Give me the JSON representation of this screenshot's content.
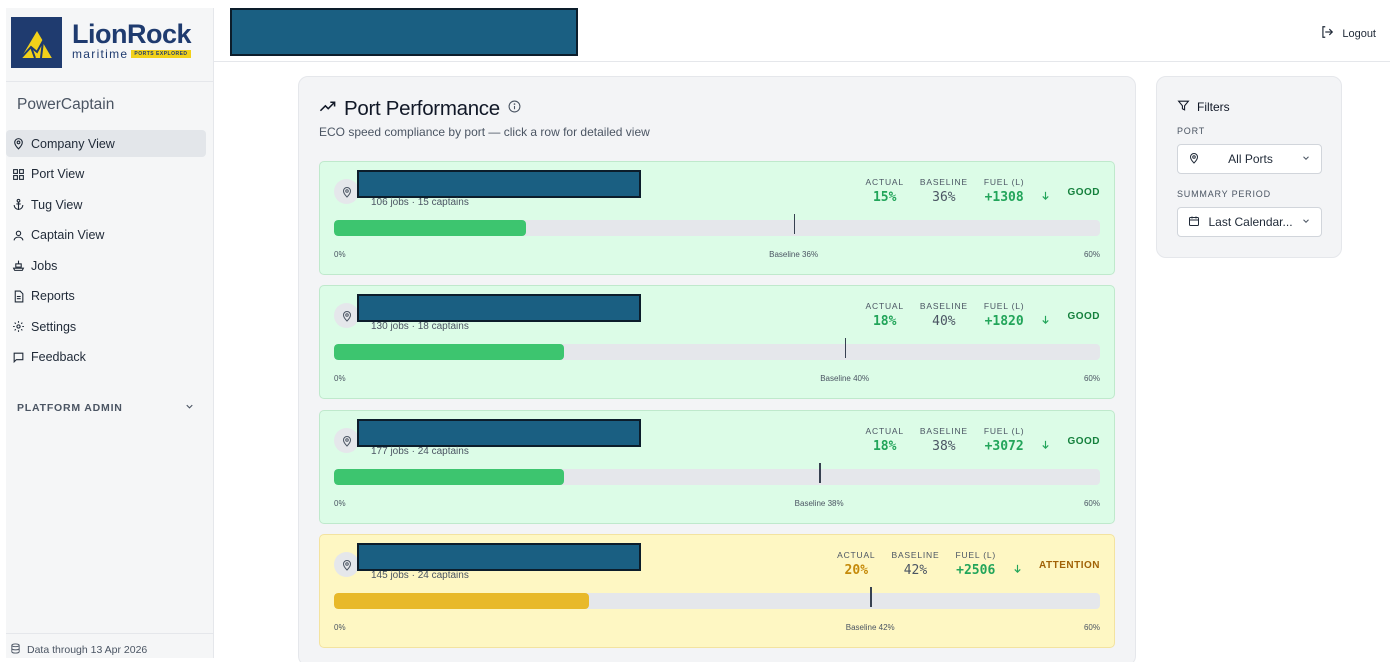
{
  "brand": {
    "name": "LionRock",
    "sub": "maritime",
    "tagline": "PORTS EXPLORED"
  },
  "app": {
    "name": "PowerCaptain",
    "data_through": "Data through 13 Apr 2026"
  },
  "sidebar": {
    "items": [
      {
        "label": "Company View",
        "icon": "map-pin-icon",
        "active": true
      },
      {
        "label": "Port View",
        "icon": "grid-icon",
        "active": false
      },
      {
        "label": "Tug View",
        "icon": "anchor-icon",
        "active": false
      },
      {
        "label": "Captain View",
        "icon": "user-icon",
        "active": false
      },
      {
        "label": "Jobs",
        "icon": "ship-icon",
        "active": false
      },
      {
        "label": "Reports",
        "icon": "document-icon",
        "active": false
      },
      {
        "label": "Settings",
        "icon": "gear-icon",
        "active": false
      },
      {
        "label": "Feedback",
        "icon": "message-icon",
        "active": false
      }
    ],
    "platform_admin": "PLATFORM ADMIN"
  },
  "header": {
    "logout_label": "Logout"
  },
  "main": {
    "title": "Port Performance",
    "subtitle": "ECO speed compliance by port — click a row for detailed view",
    "labels": {
      "actual": "ACTUAL",
      "baseline": "BASELINE",
      "fuel": "FUEL (L)"
    },
    "ports": [
      {
        "meta": "106 jobs · 15 captains",
        "actual": "15%",
        "baseline": "36%",
        "fuel": "+1308",
        "status": "GOOD",
        "actual_pct": 15,
        "baseline_pct": 36,
        "axis_min": "0%",
        "axis_max": "60%",
        "baseline_label": "Baseline 36%"
      },
      {
        "meta": "130 jobs · 18 captains",
        "actual": "18%",
        "baseline": "40%",
        "fuel": "+1820",
        "status": "GOOD",
        "actual_pct": 18,
        "baseline_pct": 40,
        "axis_min": "0%",
        "axis_max": "60%",
        "baseline_label": "Baseline 40%"
      },
      {
        "meta": "177 jobs · 24 captains",
        "actual": "18%",
        "baseline": "38%",
        "fuel": "+3072",
        "status": "GOOD",
        "actual_pct": 18,
        "baseline_pct": 38,
        "axis_min": "0%",
        "axis_max": "60%",
        "baseline_label": "Baseline 38%"
      },
      {
        "meta": "145 jobs · 24 captains",
        "actual": "20%",
        "baseline": "42%",
        "fuel": "+2506",
        "status": "ATTENTION",
        "actual_pct": 20,
        "baseline_pct": 42,
        "axis_min": "0%",
        "axis_max": "60%",
        "baseline_label": "Baseline 42%"
      }
    ],
    "scale_max_pct": 60
  },
  "filters": {
    "title": "Filters",
    "port_label": "PORT",
    "port_value": "All Ports",
    "period_label": "SUMMARY PERIOD",
    "period_value": "Last Calendar..."
  }
}
